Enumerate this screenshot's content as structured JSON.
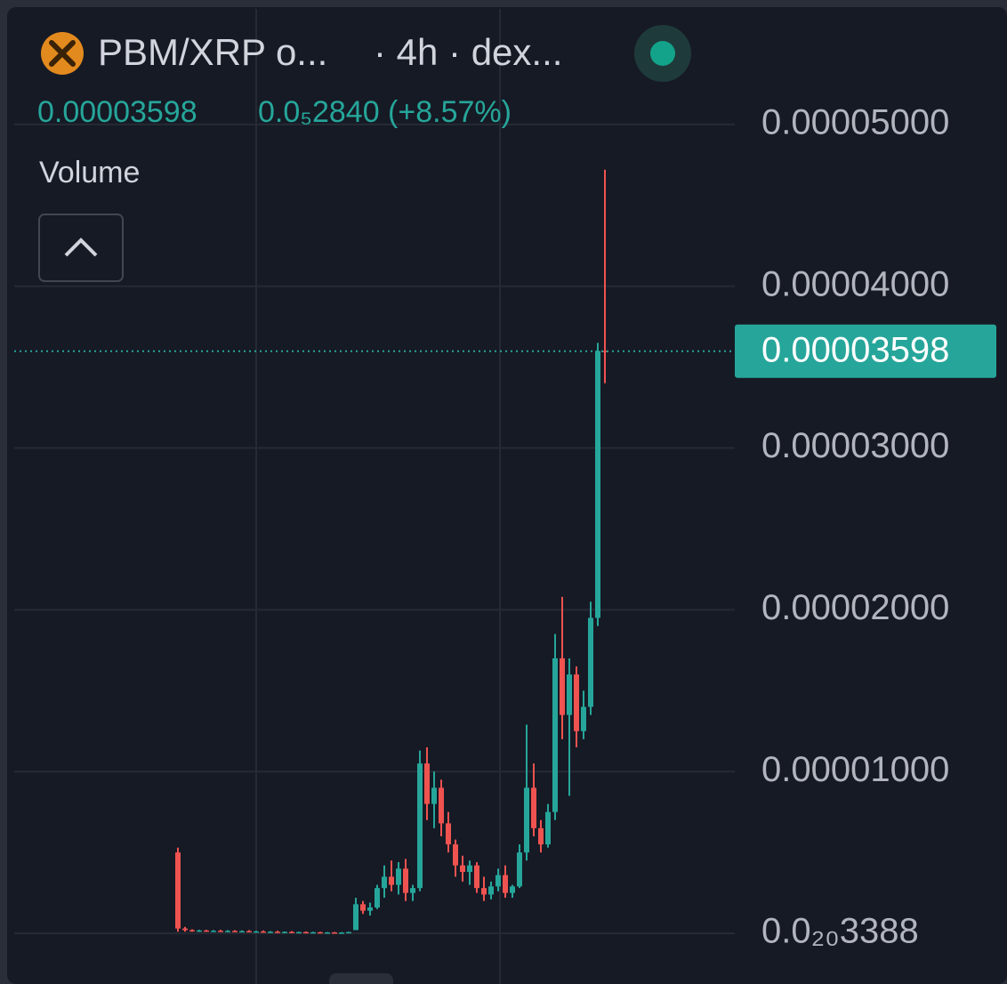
{
  "chart_data": {
    "type": "candlestick",
    "title": "PBM/XRP o...",
    "interval": "· 4h · dex...",
    "change": "0.0₅2840 (+8.57%)",
    "indicator": "Volume",
    "up_color": "#26a69a",
    "down_color": "#ef5350",
    "ylim": [
      -3.13e-06,
      5.714e-05
    ],
    "yticks": [
      {
        "value": 3.388e-21,
        "label": "0.0₂₀3388"
      },
      {
        "value": 1e-05,
        "label": "0.00001000"
      },
      {
        "value": 2e-05,
        "label": "0.00002000"
      },
      {
        "value": 3e-05,
        "label": "0.00003000"
      },
      {
        "value": 4e-05,
        "label": "0.00004000"
      },
      {
        "value": 5e-05,
        "label": "0.00005000"
      }
    ],
    "grid": true,
    "candles": [
      [
        5e-06,
        5.3e-06,
        1e-07,
        3e-07
      ],
      [
        3e-07,
        4e-07,
        1e-07,
        2e-07
      ],
      [
        2e-07,
        2.5e-07,
        1e-07,
        1.5e-07
      ],
      [
        1.5e-07,
        2.2e-07,
        1e-07,
        1.8e-07
      ],
      [
        1.8e-07,
        2.2e-07,
        1e-07,
        1.4e-07
      ],
      [
        1.4e-07,
        2e-07,
        1e-07,
        1.6e-07
      ],
      [
        1.6e-07,
        2.2e-07,
        1e-07,
        1.2e-07
      ],
      [
        1.2e-07,
        2e-07,
        8e-08,
        1.5e-07
      ],
      [
        1.5e-07,
        2e-07,
        8e-08,
        1e-07
      ],
      [
        1e-07,
        1.8e-07,
        6e-08,
        1.4e-07
      ],
      [
        1.4e-07,
        2e-07,
        6e-08,
        1e-07
      ],
      [
        1e-07,
        1.6e-07,
        5e-08,
        1.2e-07
      ],
      [
        1.2e-07,
        1.8e-07,
        5e-08,
        8e-08
      ],
      [
        8e-08,
        1.4e-07,
        4e-08,
        1e-07
      ],
      [
        1e-07,
        1.6e-07,
        4e-08,
        7e-08
      ],
      [
        7e-08,
        1.2e-07,
        3e-08,
        9e-08
      ],
      [
        9e-08,
        1.4e-07,
        3e-08,
        6e-08
      ],
      [
        6e-08,
        1e-07,
        2e-08,
        8e-08
      ],
      [
        8e-08,
        1.2e-07,
        2e-08,
        5e-08
      ],
      [
        5e-08,
        1e-07,
        2e-08,
        7e-08
      ],
      [
        7e-08,
        1e-07,
        2e-08,
        4e-08
      ],
      [
        4e-08,
        8e-08,
        1e-08,
        6e-08
      ],
      [
        6e-08,
        9e-08,
        1e-08,
        4e-08
      ],
      [
        4e-08,
        8e-08,
        1e-08,
        5e-08
      ],
      [
        5e-08,
        1e-07,
        1e-08,
        8e-08
      ],
      [
        2e-07,
        2.2e-06,
        2e-07,
        1.8e-06
      ],
      [
        1.8e-06,
        2e-06,
        1.2e-06,
        1.4e-06
      ],
      [
        1.4e-06,
        1.9e-06,
        1.1e-06,
        1.6e-06
      ],
      [
        1.6e-06,
        3e-06,
        1.5e-06,
        2.8e-06
      ],
      [
        2.8e-06,
        4.2e-06,
        2.2e-06,
        3.5e-06
      ],
      [
        3.5e-06,
        4.5e-06,
        2.6e-06,
        3e-06
      ],
      [
        3e-06,
        4.4e-06,
        2.4e-06,
        4e-06
      ],
      [
        4e-06,
        4.6e-06,
        2e-06,
        2.5e-06
      ],
      [
        2.5e-06,
        3e-06,
        2e-06,
        2.8e-06
      ],
      [
        2.8e-06,
        1.13e-05,
        2.6e-06,
        1.05e-05
      ],
      [
        1.05e-05,
        1.15e-05,
        7e-06,
        8e-06
      ],
      [
        8e-06,
        1e-05,
        6.5e-06,
        9e-06
      ],
      [
        9e-06,
        9.5e-06,
        6e-06,
        6.8e-06
      ],
      [
        6.8e-06,
        7.5e-06,
        5e-06,
        5.5e-06
      ],
      [
        5.5e-06,
        5.8e-06,
        3.5e-06,
        4.2e-06
      ],
      [
        4.2e-06,
        4.8e-06,
        3.2e-06,
        3.8e-06
      ],
      [
        3.8e-06,
        4.5e-06,
        3e-06,
        4.2e-06
      ],
      [
        4.2e-06,
        4.4e-06,
        2.5e-06,
        2.8e-06
      ],
      [
        2.8e-06,
        3.5e-06,
        2e-06,
        2.4e-06
      ],
      [
        2.4e-06,
        3.2e-06,
        2.1e-06,
        2.9e-06
      ],
      [
        2.9e-06,
        4e-06,
        2.6e-06,
        3.6e-06
      ],
      [
        3.6e-06,
        4.2e-06,
        2.2e-06,
        2.5e-06
      ],
      [
        2.5e-06,
        3e-06,
        2.2e-06,
        2.9e-06
      ],
      [
        2.9e-06,
        5.5e-06,
        2.8e-06,
        5e-06
      ],
      [
        5e-06,
        1.29e-05,
        4.5e-06,
        9e-06
      ],
      [
        9e-06,
        1.05e-05,
        6e-06,
        6.5e-06
      ],
      [
        6.5e-06,
        7e-06,
        5e-06,
        5.5e-06
      ],
      [
        5.5e-06,
        8e-06,
        5.3e-06,
        7.5e-06
      ],
      [
        7.5e-06,
        1.85e-05,
        7e-06,
        1.7e-05
      ],
      [
        1.7e-05,
        2.08e-05,
        1.2e-05,
        1.35e-05
      ],
      [
        1.35e-05,
        1.7e-05,
        8.5e-06,
        1.6e-05
      ],
      [
        1.6e-05,
        1.65e-05,
        1.15e-05,
        1.25e-05
      ],
      [
        1.25e-05,
        1.5e-05,
        1.2e-05,
        1.4e-05
      ],
      [
        1.4e-05,
        2.05e-05,
        1.35e-05,
        1.95e-05
      ],
      [
        1.95e-05,
        3.65e-05,
        1.9e-05,
        3.6e-05
      ],
      [
        3.6e-05,
        4.72e-05,
        3.4e-05,
        3.598e-05
      ]
    ]
  }
}
